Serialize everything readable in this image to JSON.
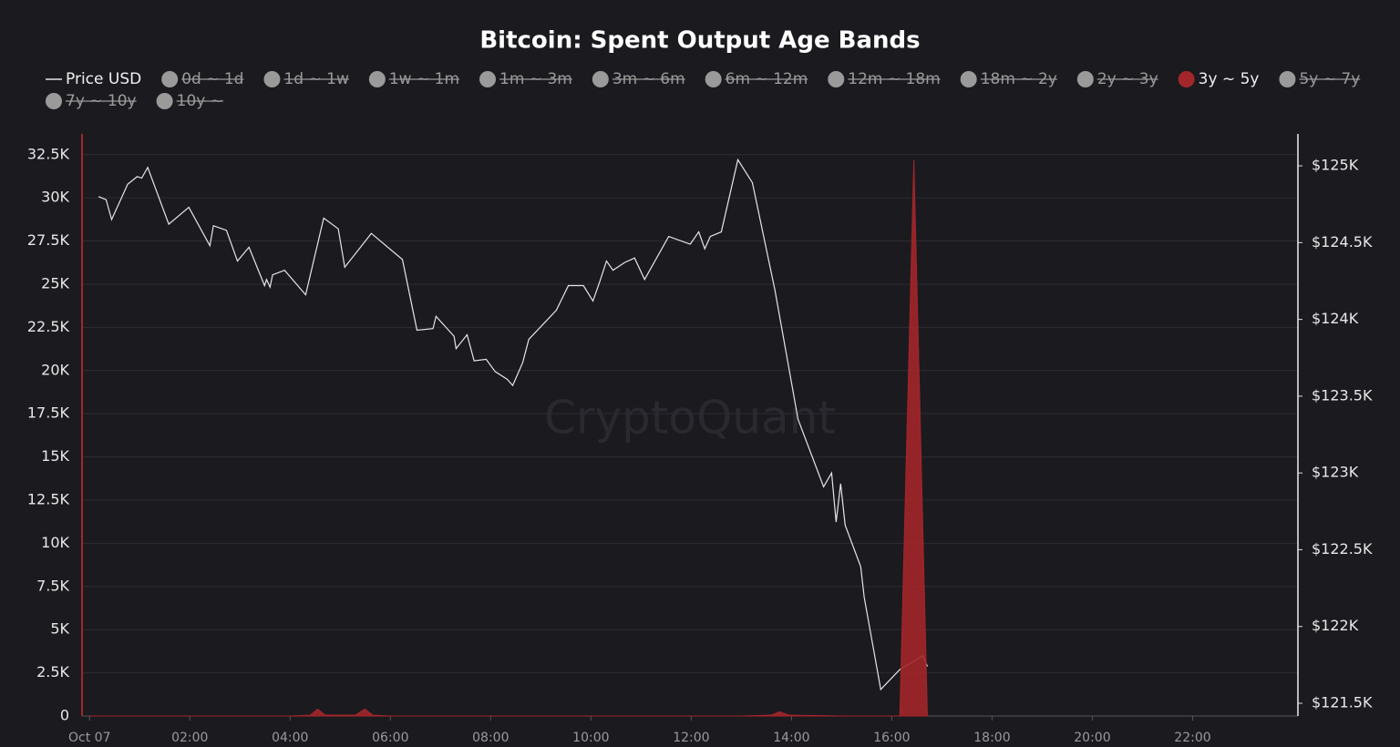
{
  "chart_data": {
    "type": "line",
    "title": "Bitcoin: Spent Output Age Bands",
    "watermark": "CryptoQuant",
    "xlim": [
      -0.15,
      24.1
    ],
    "xticks": [
      {
        "value": 0,
        "label": "Oct 07"
      },
      {
        "value": 2,
        "label": "02:00"
      },
      {
        "value": 4,
        "label": "04:00"
      },
      {
        "value": 6,
        "label": "06:00"
      },
      {
        "value": 8,
        "label": "08:00"
      },
      {
        "value": 10,
        "label": "10:00"
      },
      {
        "value": 12,
        "label": "12:00"
      },
      {
        "value": 14,
        "label": "14:00"
      },
      {
        "value": 16,
        "label": "16:00"
      },
      {
        "value": 18,
        "label": "18:00"
      },
      {
        "value": 20,
        "label": "20:00"
      },
      {
        "value": 22,
        "label": "22:00"
      }
    ],
    "ylim": [
      0,
      33700
    ],
    "yticks": [
      0,
      {
        "value": 2500,
        "label": "2.5K"
      },
      {
        "value": 5000,
        "label": "5K"
      },
      {
        "value": 7500,
        "label": "7.5K"
      },
      {
        "value": 10000,
        "label": "10K"
      },
      {
        "value": 12500,
        "label": "12.5K"
      },
      {
        "value": 15000,
        "label": "15K"
      },
      {
        "value": 17500,
        "label": "17.5K"
      },
      {
        "value": 20000,
        "label": "20K"
      },
      {
        "value": 22500,
        "label": "22.5K"
      },
      {
        "value": 25000,
        "label": "25K"
      },
      {
        "value": 27500,
        "label": "27.5K"
      },
      {
        "value": 30000,
        "label": "30K"
      },
      {
        "value": 32500,
        "label": "32.5K"
      }
    ],
    "y2lim": [
      121417,
      125208
    ],
    "y2ticks": [
      {
        "value": 121500,
        "label": "$121.5K"
      },
      {
        "value": 122000,
        "label": "$122K"
      },
      {
        "value": 122500,
        "label": "$122.5K"
      },
      {
        "value": 123000,
        "label": "$123K"
      },
      {
        "value": 123500,
        "label": "$123.5K"
      },
      {
        "value": 124000,
        "label": "$124K"
      },
      {
        "value": 124500,
        "label": "$124.5K"
      },
      {
        "value": 125000,
        "label": "$125K"
      }
    ],
    "grid": true,
    "series": [
      {
        "name": "Price USD",
        "type": "line",
        "axis": "y2",
        "color": "#e6e6e6",
        "visible": true,
        "x": [
          0.18,
          0.33,
          0.44,
          0.76,
          0.95,
          1.04,
          1.16,
          1.58,
          1.98,
          2.4,
          2.47,
          2.73,
          2.95,
          3.18,
          3.49,
          3.53,
          3.6,
          3.65,
          3.89,
          4.31,
          4.67,
          4.96,
          5.09,
          5.62,
          6.24,
          6.53,
          6.85,
          6.91,
          7.27,
          7.31,
          7.53,
          7.67,
          7.91,
          8.09,
          8.33,
          8.44,
          8.64,
          8.76,
          9.31,
          9.55,
          9.85,
          10.04,
          10.18,
          10.31,
          10.44,
          10.67,
          10.87,
          11.07,
          11.55,
          11.98,
          12.15,
          12.27,
          12.38,
          12.6,
          12.93,
          13.22,
          13.67,
          14.13,
          14.64,
          14.8,
          14.89,
          14.98,
          15.07,
          15.38,
          15.45,
          15.78,
          16.16,
          16.62,
          16.71
        ],
        "values": [
          124800,
          124780,
          124650,
          124880,
          124930,
          124920,
          124990,
          124620,
          124730,
          124480,
          124610,
          124580,
          124380,
          124470,
          124220,
          124260,
          124210,
          124290,
          124320,
          124160,
          124660,
          124590,
          124340,
          124560,
          124390,
          123930,
          123940,
          124020,
          123890,
          123810,
          123900,
          123730,
          123740,
          123660,
          123610,
          123570,
          123720,
          123870,
          124060,
          124220,
          124220,
          124120,
          124250,
          124380,
          124320,
          124370,
          124400,
          124260,
          124540,
          124490,
          124570,
          124460,
          124540,
          124570,
          125040,
          124890,
          124190,
          123350,
          122910,
          123000,
          122680,
          122930,
          122660,
          122390,
          122190,
          121590,
          121720,
          121810,
          121740
        ]
      },
      {
        "name": "0d ~ 1d",
        "visible": false
      },
      {
        "name": "1d ~ 1w",
        "visible": false
      },
      {
        "name": "1w ~ 1m",
        "visible": false
      },
      {
        "name": "1m ~ 3m",
        "visible": false
      },
      {
        "name": "3m ~ 6m",
        "visible": false
      },
      {
        "name": "6m ~ 12m",
        "visible": false
      },
      {
        "name": "12m ~ 18m",
        "visible": false
      },
      {
        "name": "18m ~ 2y",
        "visible": false
      },
      {
        "name": "2y ~ 3y",
        "visible": false
      },
      {
        "name": "3y ~ 5y",
        "type": "area",
        "color": "#a3262a",
        "visible": true,
        "x": [
          0,
          1,
          2,
          3,
          4,
          4.4,
          4.55,
          4.7,
          5.3,
          5.49,
          5.65,
          6,
          7,
          8,
          9,
          10,
          11,
          12,
          13,
          13.6,
          13.76,
          13.95,
          15,
          16,
          16.16,
          16.44,
          16.71
        ],
        "values": [
          0,
          0,
          0,
          0,
          0,
          50,
          400,
          50,
          50,
          400,
          50,
          0,
          0,
          0,
          0,
          0,
          0,
          0,
          0,
          50,
          250,
          50,
          0,
          0,
          0,
          32200,
          0
        ]
      },
      {
        "name": "5y ~ 7y",
        "visible": false
      },
      {
        "name": "7y ~ 10y",
        "visible": false
      },
      {
        "name": "10y ~",
        "visible": false
      }
    ]
  }
}
